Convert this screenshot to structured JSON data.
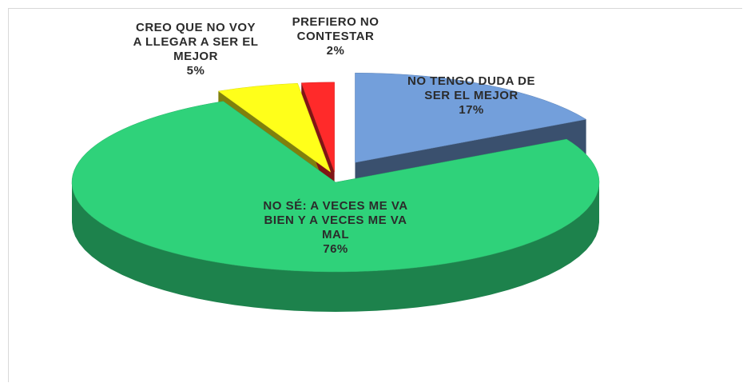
{
  "chart_data": {
    "type": "pie3d",
    "categories": [
      "NO TENGO DUDA DE SER EL MEJOR",
      "NO SÉ: A VECES ME VA BIEN Y A VECES ME VA MAL",
      "CREO QUE NO VOY A LLEGAR A SER EL MEJOR",
      "PREFIERO NO CONTESTAR"
    ],
    "values": [
      17,
      76,
      5,
      2
    ],
    "value_labels": [
      "17%",
      "76%",
      "5%",
      "2%"
    ],
    "colors": [
      "#739fdb",
      "#2fd27a",
      "#ffff1a",
      "#ff2a2a"
    ]
  }
}
